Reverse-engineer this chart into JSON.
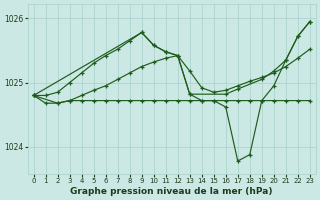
{
  "background_color": "#cce8e4",
  "grid_color": "#a8d0cc",
  "line_color": "#1e5c1e",
  "title": "Graphe pression niveau de la mer (hPa)",
  "ylim": [
    1023.58,
    1026.22
  ],
  "xlim": [
    -0.5,
    23.5
  ],
  "yticks": [
    1024,
    1025,
    1026
  ],
  "xticks": [
    0,
    1,
    2,
    3,
    4,
    5,
    6,
    7,
    8,
    9,
    10,
    11,
    12,
    13,
    14,
    15,
    16,
    17,
    18,
    19,
    20,
    21,
    22,
    23
  ],
  "series": [
    {
      "x": [
        0,
        1,
        2,
        3,
        4,
        5,
        6,
        7,
        8,
        9,
        10,
        11,
        12,
        13,
        16,
        17,
        19,
        20,
        21,
        22,
        23
      ],
      "y": [
        1024.8,
        1024.8,
        1024.85,
        1025.0,
        1025.15,
        1025.3,
        1025.42,
        1025.52,
        1025.65,
        1025.78,
        1025.58,
        1025.48,
        1025.42,
        1024.82,
        1024.82,
        1024.9,
        1025.05,
        1025.18,
        1025.35,
        1025.72,
        1025.95
      ]
    },
    {
      "x": [
        0,
        9,
        10,
        11,
        12,
        13,
        14,
        15,
        16,
        17,
        18,
        19,
        20,
        21,
        22,
        23
      ],
      "y": [
        1024.8,
        1025.78,
        1025.58,
        1025.48,
        1025.42,
        1024.82,
        1024.72,
        1024.72,
        1024.62,
        1023.78,
        1023.88,
        1024.72,
        1024.95,
        1025.35,
        1025.72,
        1025.95
      ]
    },
    {
      "x": [
        0,
        1,
        2,
        3,
        4,
        5,
        6,
        7,
        8,
        9,
        10,
        11,
        12,
        13,
        14,
        15,
        16,
        17,
        18,
        19,
        20,
        21,
        22,
        23
      ],
      "y": [
        1024.8,
        1024.68,
        1024.68,
        1024.72,
        1024.72,
        1024.72,
        1024.72,
        1024.72,
        1024.72,
        1024.72,
        1024.72,
        1024.72,
        1024.72,
        1024.72,
        1024.72,
        1024.72,
        1024.72,
        1024.72,
        1024.72,
        1024.72,
        1024.72,
        1024.72,
        1024.72,
        1024.72
      ]
    },
    {
      "x": [
        0,
        2,
        3,
        4,
        5,
        6,
        7,
        8,
        9,
        10,
        11,
        12,
        13,
        14,
        15,
        16,
        17,
        18,
        19,
        20,
        21,
        22,
        23
      ],
      "y": [
        1024.8,
        1024.68,
        1024.72,
        1024.8,
        1024.88,
        1024.95,
        1025.05,
        1025.15,
        1025.25,
        1025.32,
        1025.38,
        1025.42,
        1025.18,
        1024.92,
        1024.85,
        1024.88,
        1024.95,
        1025.02,
        1025.08,
        1025.15,
        1025.25,
        1025.38,
        1025.52
      ]
    }
  ]
}
